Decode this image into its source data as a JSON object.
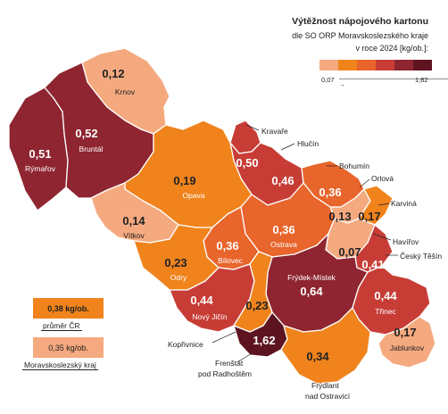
{
  "legend": {
    "title": "Výtěžnost nápojového kartonu",
    "subtitle_line1": "dle SO ORP Moravskoslezského kraje",
    "subtitle_line2": "v roce 2024 [kg/ob.]:",
    "min": "0,07",
    "max": "1,62",
    "colors": [
      "#f5a97f",
      "#f0831c",
      "#e8652c",
      "#c73d36",
      "#8e2530",
      "#5e1420"
    ]
  },
  "benchmarks": {
    "cr_value": "0,38 kg/ob.",
    "cr_label": "průměr ČR",
    "kraj_value": "0,35 kg/ob.",
    "kraj_label": "Moravskoslezský kraj"
  },
  "regions": [
    {
      "name": "Krnov",
      "value": "0,12",
      "color": "#f5a97f"
    },
    {
      "name": "Rýmařov",
      "value": "0,51",
      "color": "#8e2530"
    },
    {
      "name": "Bruntál",
      "value": "0,52",
      "color": "#8e2530"
    },
    {
      "name": "Kravaře",
      "value": "0,50",
      "color": "#c73d36"
    },
    {
      "name": "Hlučín",
      "value": "0,46",
      "color": "#c73d36"
    },
    {
      "name": "Opava",
      "value": "0,19",
      "color": "#f0831c"
    },
    {
      "name": "Vítkov",
      "value": "0,14",
      "color": "#f5a97f"
    },
    {
      "name": "Bohumín",
      "value": "0,36",
      "color": "#e8652c"
    },
    {
      "name": "Orlová",
      "value": "0,13",
      "color": "#f5a97f"
    },
    {
      "name": "Karviná",
      "value": "0,17",
      "color": "#f0831c"
    },
    {
      "name": "Ostrava",
      "value": "0,36",
      "color": "#e8652c"
    },
    {
      "name": "Bílovec",
      "value": "0,36",
      "color": "#e8652c"
    },
    {
      "name": "Havířov",
      "value": "0,07",
      "color": "#f5a97f"
    },
    {
      "name": "Český Těšín",
      "value": "0,41",
      "color": "#c73d36"
    },
    {
      "name": "Odry",
      "value": "0,23",
      "color": "#f0831c"
    },
    {
      "name": "Frýdek-Místek",
      "value": "0,64",
      "color": "#8e2530"
    },
    {
      "name": "Nový Jičín",
      "value": "0,44",
      "color": "#c73d36"
    },
    {
      "name": "Kopřivnice",
      "value": "0,23",
      "color": "#f0831c"
    },
    {
      "name": "Třinec",
      "value": "0,44",
      "color": "#c73d36"
    },
    {
      "name": "Jablunkov",
      "value": "0,17",
      "color": "#f5a97f"
    },
    {
      "name": "Frenštát pod Radhoštěm",
      "name_line1": "Frenštát",
      "name_line2": "pod Radhoštěm",
      "value": "1,62",
      "color": "#5e1420"
    },
    {
      "name": "Frýdlant nad Ostravicí",
      "name_line1": "Frýdlant",
      "name_line2": "nad Ostravicí",
      "value": "0,34",
      "color": "#f0831c"
    }
  ]
}
